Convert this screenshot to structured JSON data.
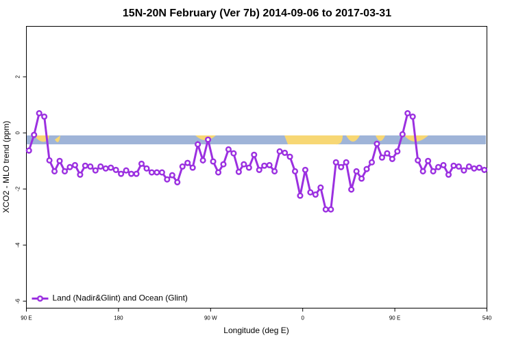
{
  "chart_data": {
    "type": "line",
    "title": "15N-20N February (Ver 7b)   2014-09-06 to 2017-03-31",
    "x_label": "Longitude (deg E)",
    "y_label": "XCO2 - MLO trend (ppm)",
    "x": [
      92.5,
      97.5,
      102.5,
      107.5,
      112.5,
      117.5,
      122.5,
      127.5,
      132.5,
      137.5,
      142.5,
      147.5,
      152.5,
      157.5,
      162.5,
      167.5,
      172.5,
      177.5,
      182.5,
      187.5,
      192.5,
      197.5,
      202.5,
      207.5,
      212.5,
      217.5,
      222.5,
      227.5,
      232.5,
      237.5,
      242.5,
      247.5,
      252.5,
      257.5,
      262.5,
      267.5,
      272.5,
      277.5,
      282.5,
      287.5,
      292.5,
      297.5,
      302.5,
      307.5,
      312.5,
      317.5,
      322.5,
      327.5,
      332.5,
      337.5,
      342.5,
      347.5,
      352.5,
      357.5,
      362.5,
      367.5,
      372.5,
      377.5,
      382.5,
      387.5,
      392.5,
      397.5,
      402.5,
      407.5,
      412.5,
      417.5,
      422.5,
      427.5,
      432.5,
      437.5,
      442.5,
      447.5,
      452.5,
      457.5,
      462.5,
      467.5,
      472.5,
      477.5,
      482.5,
      487.5,
      492.5,
      497.5,
      502.5,
      507.5,
      512.5,
      517.5,
      522.5,
      527.5,
      532.5,
      537.5
    ],
    "series": [
      {
        "name": "Land (Nadir&Glint) and Ocean (Glint)",
        "color": "#9b30e0",
        "values": [
          -0.63,
          -0.07,
          0.7,
          0.58,
          -0.98,
          -1.37,
          -1.0,
          -1.37,
          -1.22,
          -1.15,
          -1.49,
          -1.17,
          -1.2,
          -1.34,
          -1.2,
          -1.27,
          -1.24,
          -1.32,
          -1.46,
          -1.34,
          -1.46,
          -1.46,
          -1.1,
          -1.27,
          -1.41,
          -1.41,
          -1.41,
          -1.66,
          -1.51,
          -1.76,
          -1.2,
          -1.07,
          -1.24,
          -0.41,
          -0.98,
          -0.24,
          -1.02,
          -1.41,
          -1.12,
          -0.59,
          -0.73,
          -1.39,
          -1.12,
          -1.24,
          -0.78,
          -1.32,
          -1.17,
          -1.15,
          -1.37,
          -0.66,
          -0.71,
          -0.85,
          -1.37,
          -2.24,
          -1.32,
          -2.12,
          -2.2,
          -1.95,
          -2.73,
          -2.73,
          -1.05,
          -1.22,
          -1.05,
          -2.02,
          -1.37,
          -1.63,
          -1.29,
          -1.05,
          -0.39,
          -0.88,
          -0.73,
          -0.93,
          -0.66,
          -0.05,
          0.7,
          0.58,
          -0.98,
          -1.37,
          -1.0,
          -1.37,
          -1.22,
          -1.15,
          -1.49,
          -1.17,
          -1.2,
          -1.34,
          -1.2,
          -1.27,
          -1.24,
          -1.32
        ]
      }
    ],
    "xlim": [
      90,
      540
    ],
    "xticks": [
      {
        "value": 90,
        "label": "90 E"
      },
      180,
      {
        "value": 270,
        "label": "90 W"
      },
      {
        "value": 360,
        "label": "0"
      },
      {
        "value": 450,
        "label": "90 E"
      },
      540
    ],
    "ylim": [
      -6.25,
      3.8
    ],
    "yticks": [
      -6,
      -4,
      -2,
      0,
      2
    ],
    "legend": "bottom-left"
  }
}
